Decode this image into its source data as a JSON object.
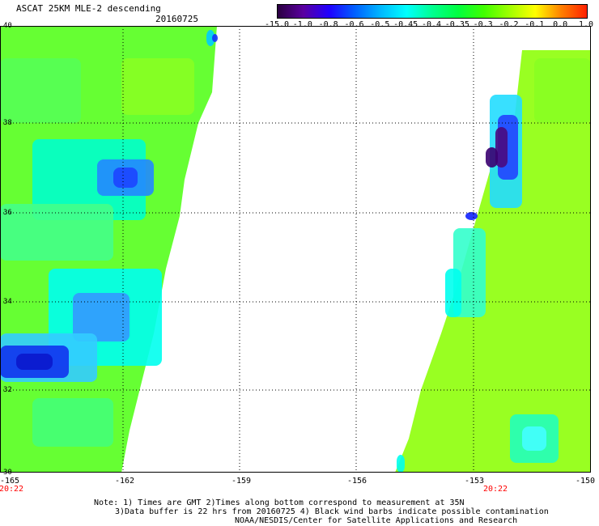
{
  "title": "ASCAT 25KM MLE-2 descending",
  "date": "20160725",
  "colorbar": {
    "labels": [
      "-15.0",
      "-1.0",
      "-0.8",
      "-0.6",
      "-0.5",
      "-0.45",
      "-0.4",
      "-0.35",
      "-0.3",
      "-0.2",
      "-0.1",
      "0.0",
      "1.0"
    ],
    "colors": [
      "#2a0040",
      "#5a00a0",
      "#2000ff",
      "#0060ff",
      "#00b8ff",
      "#00ffff",
      "#00ff90",
      "#00ff40",
      "#40ff00",
      "#a0ff00",
      "#ffff00",
      "#ff8000",
      "#ff2000"
    ]
  },
  "axes": {
    "x_ticks": [
      "-165",
      "-162",
      "-159",
      "-156",
      "-153",
      "-150"
    ],
    "y_ticks": [
      "40",
      "38",
      "36",
      "34",
      "32",
      "30"
    ],
    "lon_range": [
      -165,
      -150
    ],
    "lat_range": [
      30,
      40
    ]
  },
  "times": {
    "left": "20:22",
    "right": "20:22"
  },
  "notes": {
    "line1": "Note: 1) Times are GMT 2)Times along bottom correspond to measurement at 35N",
    "line2": "3)Data buffer is 22 hrs from 20160725 4) Black wind barbs indicate possible contamination",
    "line3": "NOAA/NESDIS/Center for Satellite Applications and Research"
  }
}
